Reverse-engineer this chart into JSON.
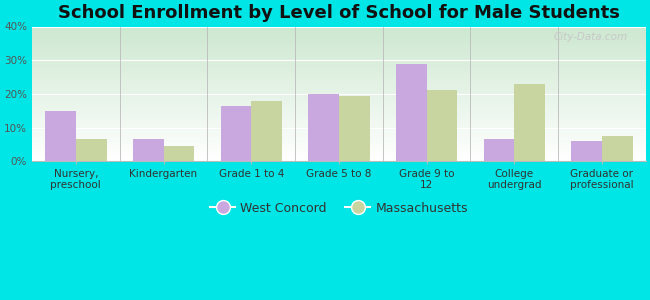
{
  "title": "School Enrollment by Level of School for Male Students",
  "categories": [
    "Nursery,\npreschool",
    "Kindergarten",
    "Grade 1 to 4",
    "Grade 5 to 8",
    "Grade 9 to\n12",
    "College\nundergrad",
    "Graduate or\nprofessional"
  ],
  "west_concord": [
    15,
    6.5,
    16.5,
    20,
    29,
    6.5,
    6
  ],
  "massachusetts": [
    6.5,
    4.5,
    18,
    19.5,
    21,
    23,
    7.5
  ],
  "bar_color_wc": "#c9a8e0",
  "bar_color_ma": "#c8d5a0",
  "background_color": "#00e5e5",
  "grad_top": "#cde8d0",
  "grad_bottom": "#ffffff",
  "ylim": [
    0,
    40
  ],
  "yticks": [
    0,
    10,
    20,
    30,
    40
  ],
  "ytick_labels": [
    "0%",
    "10%",
    "20%",
    "30%",
    "40%"
  ],
  "legend_wc": "West Concord",
  "legend_ma": "Massachusetts",
  "bar_width": 0.35,
  "title_fontsize": 13,
  "tick_fontsize": 7.5,
  "legend_fontsize": 9,
  "watermark_text": "City-Data.com"
}
